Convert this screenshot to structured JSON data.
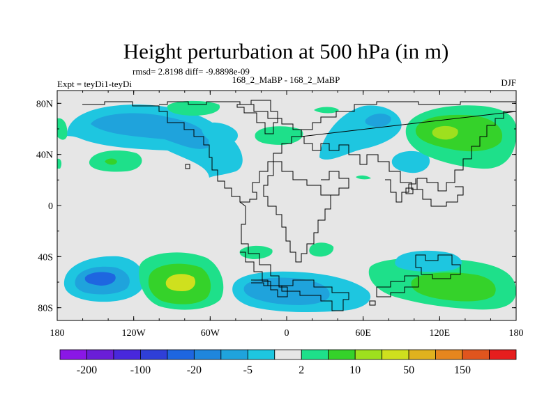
{
  "chart_data": {
    "type": "heatmap",
    "title": "Height perturbation at 500 hPa (in m)",
    "stats": "rmsd= 2.8198 diff= -9.8898e-09",
    "left_label": "Expt = teyDi1-teyDi",
    "center_label": "168_2_MaBP - 168_2_MaBP",
    "right_label": "DJF",
    "xlim": [
      -180,
      180
    ],
    "ylim": [
      -90,
      90
    ],
    "x_ticks": [
      {
        "value": -180,
        "label": "180"
      },
      {
        "value": -120,
        "label": "120W"
      },
      {
        "value": -60,
        "label": "60W"
      },
      {
        "value": 0,
        "label": "0"
      },
      {
        "value": 60,
        "label": "60E"
      },
      {
        "value": 120,
        "label": "120E"
      },
      {
        "value": 180,
        "label": "180"
      }
    ],
    "y_ticks": [
      {
        "value": 80,
        "label": "80N"
      },
      {
        "value": 40,
        "label": "40N"
      },
      {
        "value": 0,
        "label": "0"
      },
      {
        "value": -40,
        "label": "40S"
      },
      {
        "value": -80,
        "label": "80S"
      }
    ],
    "colorbar": {
      "colors": [
        "#8a17e6",
        "#6a1ed8",
        "#4828dc",
        "#2f3fd8",
        "#1e66e0",
        "#1f86dc",
        "#1fa3dc",
        "#1ec6e0",
        "#e6e6e6",
        "#1ee08a",
        "#35d22a",
        "#9ee01e",
        "#cfe01e",
        "#e0b21e",
        "#e6861e",
        "#e0551e",
        "#e61e1e"
      ],
      "labels": [
        {
          "after_box": 1,
          "label": "-200"
        },
        {
          "after_box": 3,
          "label": "-100"
        },
        {
          "after_box": 5,
          "label": "-20"
        },
        {
          "after_box": 7,
          "label": "-5"
        },
        {
          "after_box": 9,
          "label": "2"
        },
        {
          "after_box": 11,
          "label": "10"
        },
        {
          "after_box": 13,
          "label": "50"
        },
        {
          "after_box": 15,
          "label": "150"
        }
      ]
    },
    "features": [
      {
        "name": "n-pacific-low",
        "lon": -120,
        "lat": 58,
        "rx": 45,
        "ry": 18,
        "level": "-20"
      },
      {
        "name": "n-pacific-low-ext",
        "lon": -88,
        "lat": 50,
        "rx": 35,
        "ry": 14,
        "level": "-20"
      },
      {
        "name": "n-atlantic-low",
        "lon": -45,
        "lat": 47,
        "rx": 15,
        "ry": 10,
        "level": "-5"
      },
      {
        "name": "w-siberia-low",
        "lon": 67,
        "lat": 55,
        "rx": 20,
        "ry": 12,
        "level": "-20"
      },
      {
        "name": "siberia-high",
        "lon": 125,
        "lat": 58,
        "rx": 30,
        "ry": 19,
        "level": "10"
      },
      {
        "name": "n-pacific-high-w",
        "lon": -142,
        "lat": 36,
        "rx": 9,
        "ry": 5,
        "level": "10"
      },
      {
        "name": "s-pacific-low",
        "lon": -140,
        "lat": -57,
        "rx": 28,
        "ry": 14,
        "level": "-20"
      },
      {
        "name": "s-pacific-high",
        "lon": -82,
        "lat": -62,
        "rx": 28,
        "ry": 16,
        "level": "50"
      },
      {
        "name": "s-atlantic-low",
        "lon": 0,
        "lat": -68,
        "rx": 33,
        "ry": 13,
        "level": "-20"
      },
      {
        "name": "s-indian-high",
        "lon": 130,
        "lat": -65,
        "rx": 38,
        "ry": 15,
        "level": "10"
      }
    ]
  }
}
